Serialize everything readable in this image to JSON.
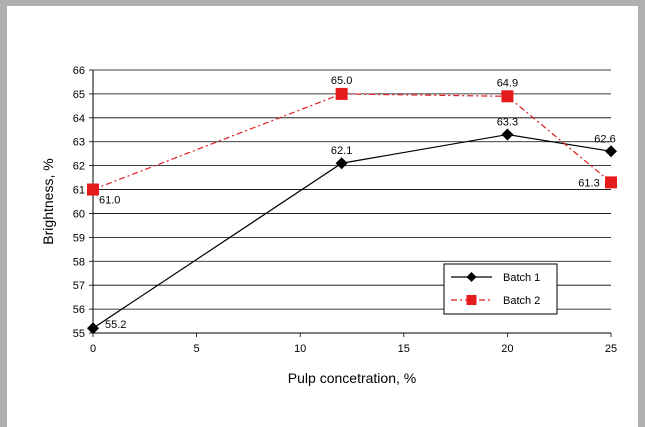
{
  "chart_data": {
    "type": "line",
    "title": "",
    "xlabel": "Pulp concetration, %",
    "ylabel": "Brightness, %",
    "xlim": [
      0,
      25
    ],
    "ylim": [
      55,
      66
    ],
    "xticks": [
      "0",
      "5",
      "10",
      "15",
      "20",
      "25"
    ],
    "yticks": [
      "55",
      "56",
      "57",
      "58",
      "59",
      "60",
      "61",
      "62",
      "63",
      "64",
      "65",
      "66"
    ],
    "grid": "horizontal",
    "legend_position": "bottom-right",
    "series": [
      {
        "name": "Batch 1",
        "color": "#000000",
        "line_style": "solid",
        "marker": "diamond",
        "x": [
          0,
          12,
          20,
          25
        ],
        "y": [
          55.2,
          62.1,
          63.3,
          62.6
        ],
        "labels": [
          "55.2",
          "62.1",
          "63.3",
          "62.6"
        ]
      },
      {
        "name": "Batch 2",
        "color": "#e41a1c",
        "line_style": "dash-dot",
        "marker": "square",
        "x": [
          0,
          12,
          20,
          25
        ],
        "y": [
          61.0,
          65.0,
          64.9,
          61.3
        ],
        "labels": [
          "61.0",
          "65.0",
          "64.9",
          "61.3"
        ]
      }
    ]
  }
}
